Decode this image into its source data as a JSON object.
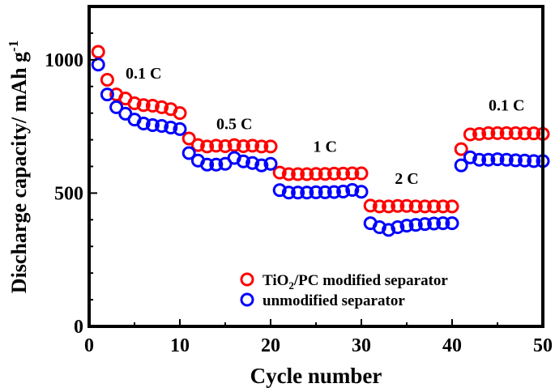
{
  "chart_data": {
    "type": "scatter",
    "xlabel": "Cycle number",
    "ylabel": "Discharge capacity/ mAh g",
    "ylabel_sup": "-1",
    "xlim": [
      0,
      50
    ],
    "ylim": [
      0,
      1200
    ],
    "x_ticks": [
      "0",
      "10",
      "20",
      "30",
      "40",
      "50"
    ],
    "y_ticks": [
      "0",
      "500",
      "1000"
    ],
    "grid": false,
    "legend_position": "bottom-right",
    "annotations": [
      {
        "text": "0.1 C",
        "x": 6,
        "y": 930
      },
      {
        "text": "0.5 C",
        "x": 16,
        "y": 740
      },
      {
        "text": "1 C",
        "x": 26,
        "y": 655
      },
      {
        "text": "2 C",
        "x": 35,
        "y": 535
      },
      {
        "text": "0.1 C",
        "x": 46,
        "y": 810
      }
    ],
    "series": [
      {
        "name": "TiO2/PC modified separator",
        "name_parts": [
          "TiO",
          "2",
          "/PC modified separator"
        ],
        "color": "#ff0000",
        "x": [
          1,
          2,
          3,
          4,
          5,
          6,
          7,
          8,
          9,
          10,
          11,
          12,
          13,
          14,
          15,
          16,
          17,
          18,
          19,
          20,
          21,
          22,
          23,
          24,
          25,
          26,
          27,
          28,
          29,
          30,
          31,
          32,
          33,
          34,
          35,
          36,
          37,
          38,
          39,
          40,
          41,
          42,
          43,
          44,
          45,
          46,
          47,
          48,
          49,
          50
        ],
        "values": [
          1030,
          925,
          870,
          855,
          837,
          830,
          828,
          822,
          815,
          800,
          705,
          680,
          675,
          678,
          676,
          680,
          676,
          678,
          675,
          675,
          577,
          571,
          571,
          571,
          572,
          572,
          573,
          573,
          574,
          574,
          453,
          450,
          450,
          452,
          452,
          450,
          450,
          450,
          450,
          450,
          665,
          720,
          722,
          725,
          725,
          725,
          725,
          724,
          724,
          722
        ]
      },
      {
        "name": "unmodified separator",
        "color": "#0000ff",
        "x": [
          1,
          2,
          3,
          4,
          5,
          6,
          7,
          8,
          9,
          10,
          11,
          12,
          13,
          14,
          15,
          16,
          17,
          18,
          19,
          20,
          21,
          22,
          23,
          24,
          25,
          26,
          27,
          28,
          29,
          30,
          31,
          32,
          33,
          34,
          35,
          36,
          37,
          38,
          39,
          40,
          41,
          42,
          43,
          44,
          45,
          46,
          47,
          48,
          49,
          50
        ],
        "values": [
          982,
          870,
          822,
          798,
          776,
          761,
          755,
          752,
          746,
          740,
          650,
          622,
          607,
          607,
          610,
          632,
          619,
          613,
          604,
          610,
          511,
          502,
          502,
          502,
          503,
          503,
          504,
          506,
          512,
          505,
          387,
          372,
          362,
          372,
          378,
          381,
          384,
          386,
          387,
          387,
          604,
          634,
          625,
          625,
          627,
          625,
          623,
          622,
          620,
          620
        ]
      }
    ]
  }
}
